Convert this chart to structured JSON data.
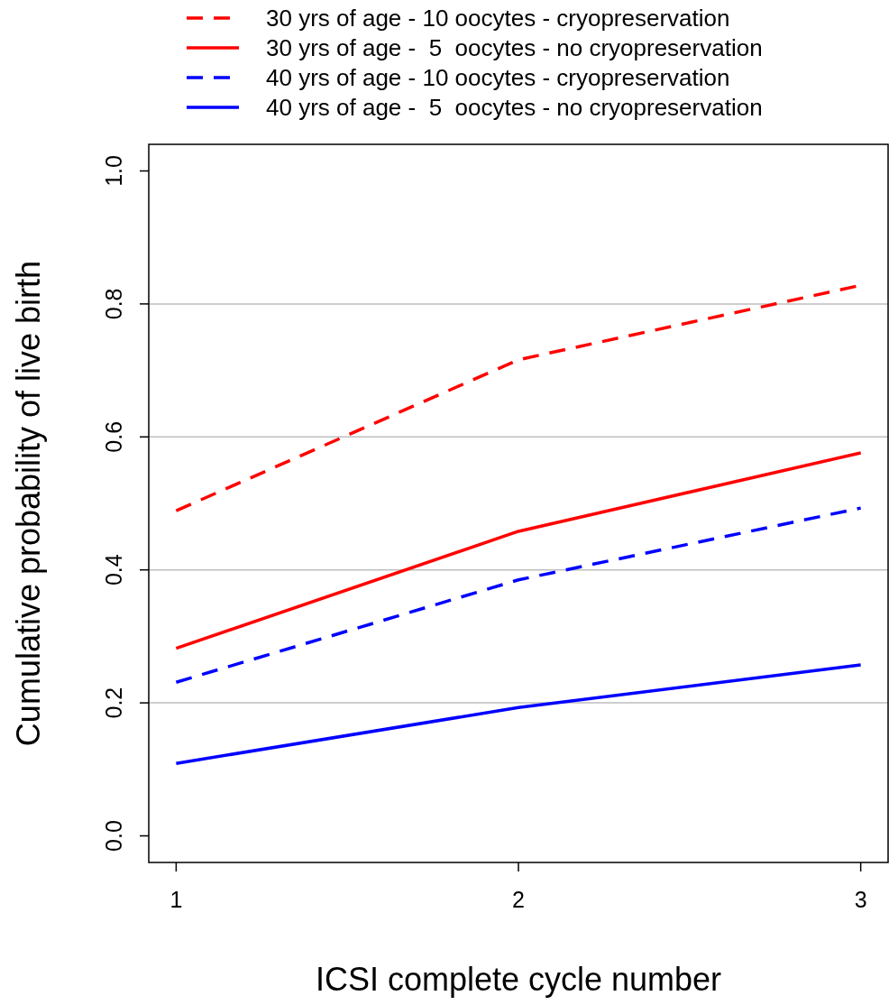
{
  "chart_data": {
    "type": "line",
    "xlabel": "ICSI complete cycle number",
    "ylabel": "Cumulative probability of live birth",
    "x": [
      1,
      2,
      3
    ],
    "xlim": [
      0.92,
      3.08
    ],
    "xticks": [
      1,
      2,
      3
    ],
    "ylim": [
      -0.04,
      1.04
    ],
    "yticks": [
      {
        "value": 0,
        "label": "0.0"
      },
      {
        "value": 0.2,
        "label": "0.2"
      },
      {
        "value": 0.4,
        "label": "0.4"
      },
      {
        "value": 0.6,
        "label": "0.6"
      },
      {
        "value": 0.8,
        "label": "0.8"
      },
      {
        "value": 1,
        "label": "1.0"
      }
    ],
    "legend": "top",
    "marker": "none",
    "ref_lines": [
      {
        "axis": "y",
        "value": 0.2,
        "color": "#bebebe"
      },
      {
        "axis": "y",
        "value": 0.4,
        "color": "#bebebe"
      },
      {
        "axis": "y",
        "value": 0.6,
        "color": "#bebebe"
      },
      {
        "axis": "y",
        "value": 0.8,
        "color": "#bebebe"
      }
    ],
    "series": [
      {
        "name": "30 yrs of age - 10 oocytes - cryopreservation",
        "color": "#ff0000",
        "line_style": "dashed",
        "values": [
          0.489,
          0.716,
          0.828
        ]
      },
      {
        "name": "30 yrs of age -  5  oocytes - no cryopreservation",
        "color": "#ff0000",
        "line_style": "solid",
        "values": [
          0.282,
          0.458,
          0.576
        ]
      },
      {
        "name": "40 yrs of age - 10 oocytes - cryopreservation",
        "color": "#0000ff",
        "line_style": "dashed",
        "values": [
          0.231,
          0.385,
          0.493
        ]
      },
      {
        "name": "40 yrs of age -  5  oocytes - no cryopreservation",
        "color": "#0000ff",
        "line_style": "solid",
        "values": [
          0.109,
          0.193,
          0.257
        ]
      }
    ]
  }
}
